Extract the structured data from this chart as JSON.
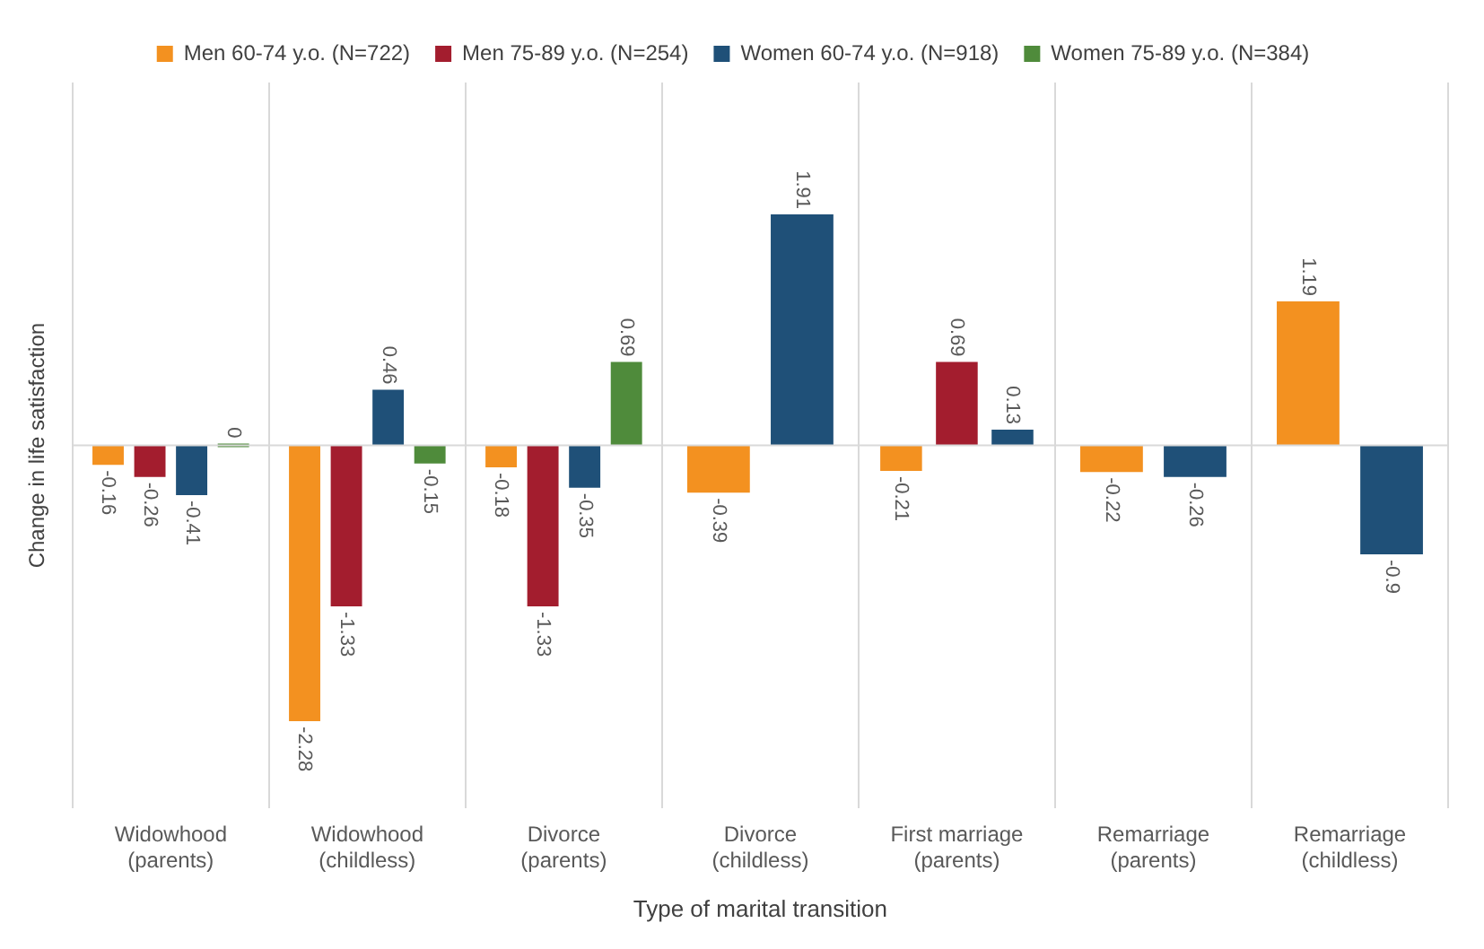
{
  "chart_data": {
    "type": "bar",
    "xlabel": "Type of marital transition",
    "ylabel": "Change in life satisfaction",
    "categories": [
      "Widowhood (parents)",
      "Widowhood (childless)",
      "Divorce (parents)",
      "Divorce (childless)",
      "First marriage (parents)",
      "Remarriage (parents)",
      "Remarriage (childless)"
    ],
    "series": [
      {
        "name": "Men 60-74 y.o. (N=722)",
        "color": "#f39120",
        "values": [
          -0.16,
          -2.28,
          -0.18,
          -0.39,
          -0.21,
          -0.22,
          1.19
        ]
      },
      {
        "name": "Men 75-89 y.o. (N=254)",
        "color": "#a31d2e",
        "values": [
          -0.26,
          -1.33,
          -1.33,
          null,
          0.69,
          null,
          null
        ]
      },
      {
        "name": "Women 60-74 y.o. (N=918)",
        "color": "#1f5078",
        "values": [
          -0.41,
          0.46,
          -0.35,
          1.91,
          0.13,
          -0.26,
          -0.9
        ]
      },
      {
        "name": "Women 75-89 y.o. (N=384)",
        "color": "#4f8b3b",
        "values": [
          0,
          -0.15,
          0.69,
          null,
          null,
          null,
          null
        ]
      }
    ],
    "data_labels": true,
    "grid": "x",
    "legend": "top"
  }
}
